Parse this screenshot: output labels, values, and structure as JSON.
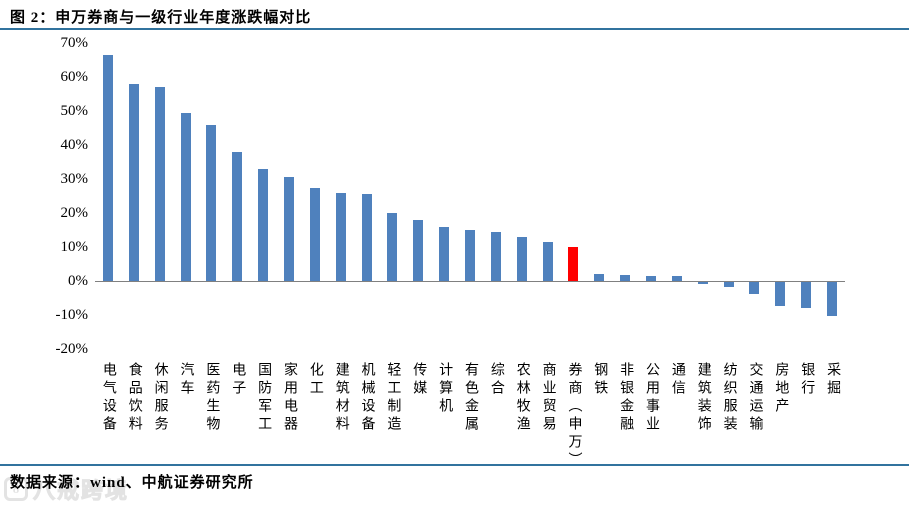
{
  "figure": {
    "title": "图 2：申万券商与一级行业年度涨跌幅对比",
    "source": "数据来源：wind、中航证券研究所",
    "watermark": {
      "logo": "bajie-logo",
      "text": "八戒跨境"
    }
  },
  "colors": {
    "bar_default": "#4F81BD",
    "bar_highlight": "#FF0000",
    "divider_blue": "#31739E",
    "axis_gray": "#808080"
  },
  "chart_data": {
    "type": "bar",
    "title": "申万券商与一级行业年度涨跌幅对比",
    "categories": [
      "电气设备",
      "食品饮料",
      "休闲服务",
      "汽车",
      "医药生物",
      "电子",
      "国防军工",
      "家用电器",
      "化工",
      "建筑材料",
      "机械设备",
      "轻工制造",
      "传媒",
      "计算机",
      "有色金属",
      "综合",
      "农林牧渔",
      "商业贸易",
      "券商（申万）",
      "钢铁",
      "非银金融",
      "公用事业",
      "通信",
      "建筑装饰",
      "纺织服装",
      "交通运输",
      "房地产",
      "银行",
      "采掘"
    ],
    "values": [
      66.5,
      58,
      57,
      49.5,
      46,
      38,
      33,
      30.5,
      27.5,
      26,
      25.5,
      20,
      18,
      16,
      15,
      14.5,
      13,
      11.5,
      10,
      2,
      1.7,
      1.5,
      1.5,
      -0.7,
      -1.4,
      -3.5,
      -7,
      -7.5,
      -10
    ],
    "highlight_index": 18,
    "highlight_category": "券商（申万）",
    "xlabel": "",
    "ylabel": "",
    "ylim": [
      -20,
      70
    ],
    "yticks": [
      70,
      60,
      50,
      40,
      30,
      20,
      10,
      0,
      -10,
      -20
    ],
    "ytick_labels": [
      "70%",
      "60%",
      "50%",
      "40%",
      "30%",
      "20%",
      "10%",
      "0%",
      "-10%",
      "-20%"
    ],
    "grid": false,
    "legend": false
  }
}
